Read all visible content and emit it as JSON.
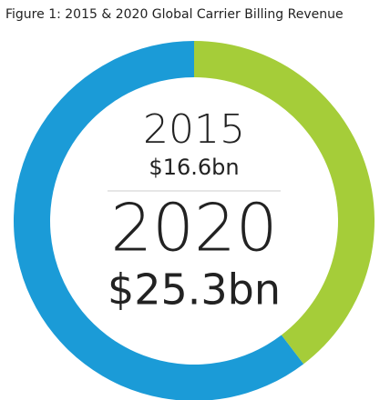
{
  "chart_data": {
    "type": "donut",
    "title": "Figure 1: 2015 & 2020 Global Carrier Billing Revenue",
    "categories": [
      "2015",
      "2020"
    ],
    "values": [
      16.6,
      25.3
    ],
    "value_labels": [
      "$16.6bn",
      "$25.3bn"
    ],
    "colors": [
      "#a5cd39",
      "#1b9bd7"
    ]
  }
}
